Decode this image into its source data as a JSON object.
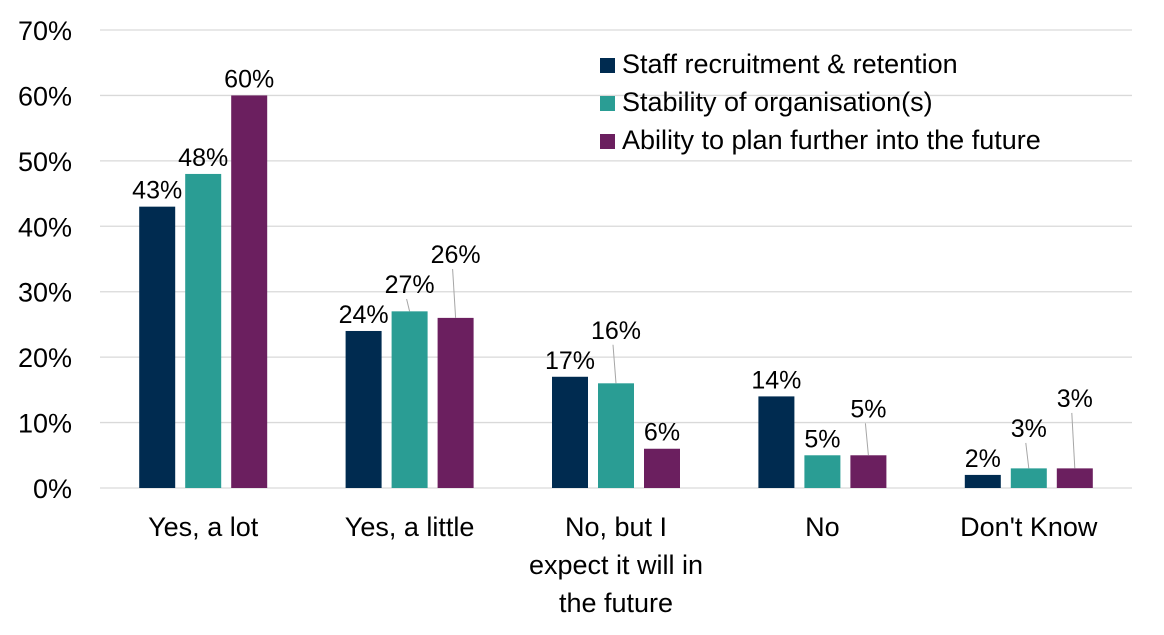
{
  "chart_data": {
    "type": "bar",
    "title": "",
    "xlabel": "",
    "ylabel": "",
    "ylim": [
      0,
      70
    ],
    "yticks": [
      "0%",
      "10%",
      "20%",
      "30%",
      "40%",
      "50%",
      "60%",
      "70%"
    ],
    "grid": true,
    "legend_position": "top-right",
    "categories": [
      [
        "Yes, a lot"
      ],
      [
        "Yes, a little"
      ],
      [
        "No, but I",
        "expect it will in",
        "the future"
      ],
      [
        "No"
      ],
      [
        "Don't Know"
      ]
    ],
    "series": [
      {
        "name": "Staff recruitment & retention",
        "color": "#002B50",
        "values": [
          43,
          24,
          17,
          14,
          2
        ]
      },
      {
        "name": "Stability of organisation(s)",
        "color": "#2A9D94",
        "values": [
          48,
          27,
          16,
          5,
          3
        ]
      },
      {
        "name": "Ability to plan further into the future",
        "color": "#6B1F5F",
        "values": [
          60,
          26,
          6,
          5,
          3
        ]
      }
    ],
    "value_suffix": "%"
  }
}
